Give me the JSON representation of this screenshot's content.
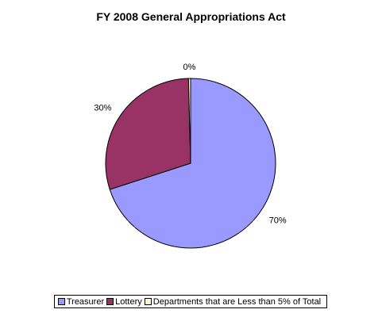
{
  "chart_data": {
    "type": "pie",
    "title": "FY 2008 General Appropriations Act",
    "slices": [
      {
        "name": "Treasurer",
        "value": 70.0,
        "label": "70%",
        "color": "#9999ff"
      },
      {
        "name": "Lottery",
        "value": 29.6,
        "label": "30%",
        "color": "#993366"
      },
      {
        "name": "Departments that are Less than 5% of Total",
        "value": 0.4,
        "label": "0%",
        "color": "#ffffcc"
      }
    ],
    "legend": {
      "placement": "bottom",
      "entries": [
        "Treasurer",
        "Lottery",
        "Departments that are Less than 5% of Total"
      ]
    }
  }
}
